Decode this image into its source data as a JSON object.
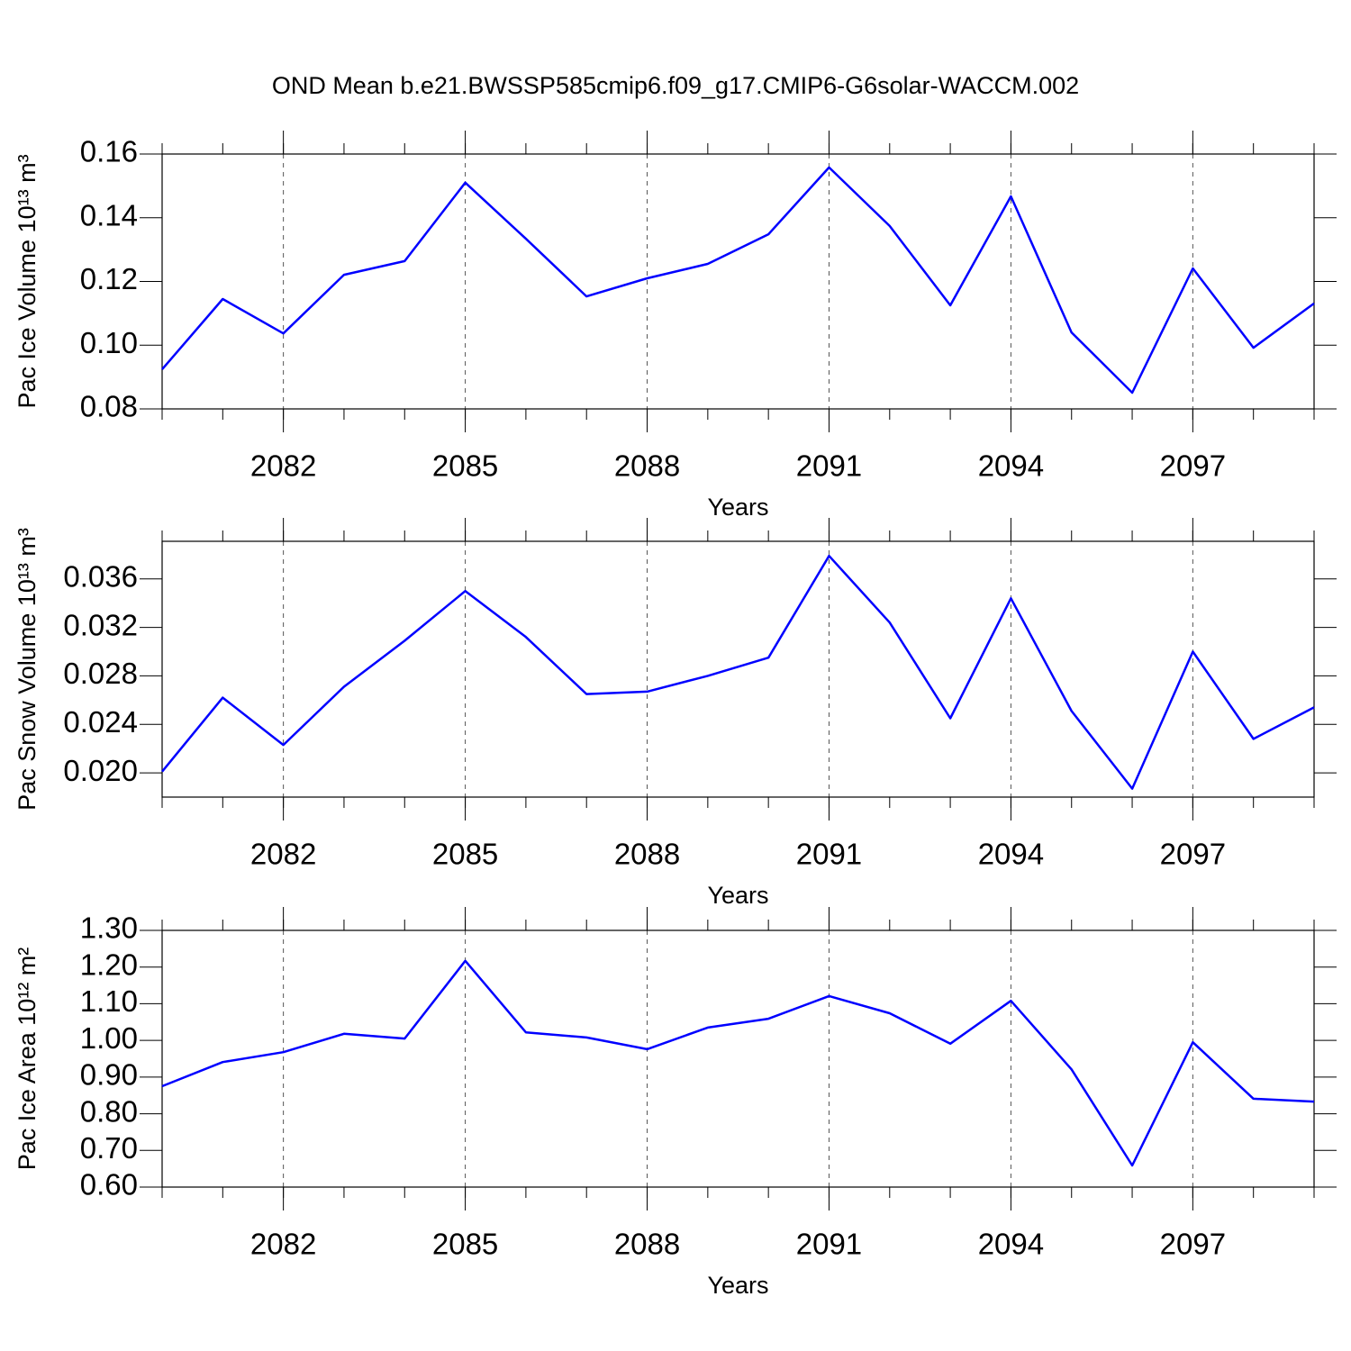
{
  "title": "OND Mean b.e21.BWSSP585cmip6.f09_g17.CMIP6-G6solar-WACCM.002",
  "chart_data": [
    {
      "type": "line",
      "xlabel": "Years",
      "ylabel": "Pac Ice Volume 10¹³ m³",
      "color": "#0000ff",
      "x": [
        2080,
        2081,
        2082,
        2083,
        2084,
        2085,
        2086,
        2087,
        2088,
        2089,
        2090,
        2091,
        2092,
        2093,
        2094,
        2095,
        2096,
        2097,
        2098,
        2099
      ],
      "values": [
        0.0924,
        0.1145,
        0.1037,
        0.1221,
        0.1264,
        0.151,
        0.1334,
        0.1153,
        0.121,
        0.1255,
        0.1348,
        0.1558,
        0.1374,
        0.1125,
        0.1467,
        0.104,
        0.0851,
        0.1241,
        0.0992,
        0.1131
      ],
      "xlim": [
        2080,
        2099
      ],
      "xticks": [
        2082,
        2085,
        2088,
        2091,
        2094,
        2097
      ],
      "ylim": [
        0.08,
        0.16
      ],
      "yticks": [
        0.08,
        {
          "value": 0.1,
          "label": "0.10"
        },
        0.12,
        0.14,
        0.16
      ],
      "xgrid": true
    },
    {
      "type": "line",
      "xlabel": "Years",
      "ylabel": "Pac Snow Volume 10¹³ m³",
      "color": "#0000ff",
      "x": [
        2080,
        2081,
        2082,
        2083,
        2084,
        2085,
        2086,
        2087,
        2088,
        2089,
        2090,
        2091,
        2092,
        2093,
        2094,
        2095,
        2096,
        2097,
        2098,
        2099
      ],
      "values": [
        0.0201,
        0.0262,
        0.0223,
        0.0271,
        0.0309,
        0.035,
        0.0312,
        0.0265,
        0.0267,
        0.028,
        0.0295,
        0.0379,
        0.0324,
        0.0245,
        0.0344,
        0.0251,
        0.0187,
        0.03,
        0.0228,
        0.0254
      ],
      "xlim": [
        2080,
        2099
      ],
      "xticks": [
        2082,
        2085,
        2088,
        2091,
        2094,
        2097
      ],
      "ylim": [
        0.018,
        0.0391
      ],
      "yticks": [
        {
          "value": 0.02,
          "label": "0.020"
        },
        0.024,
        0.028,
        0.032,
        0.036
      ],
      "xgrid": true
    },
    {
      "type": "line",
      "xlabel": "Years",
      "ylabel": "Pac Ice Area 10¹² m²",
      "color": "#0000ff",
      "x": [
        2080,
        2081,
        2082,
        2083,
        2084,
        2085,
        2086,
        2087,
        2088,
        2089,
        2090,
        2091,
        2092,
        2093,
        2094,
        2095,
        2096,
        2097,
        2098,
        2099
      ],
      "values": [
        0.875,
        0.941,
        0.968,
        1.018,
        1.005,
        1.217,
        1.022,
        1.008,
        0.976,
        1.035,
        1.059,
        1.121,
        1.074,
        0.991,
        1.108,
        0.921,
        0.659,
        0.995,
        0.841,
        0.833
      ],
      "xlim": [
        2080,
        2099
      ],
      "xticks": [
        2082,
        2085,
        2088,
        2091,
        2094,
        2097
      ],
      "ylim": [
        0.6,
        1.3
      ],
      "yticks": [
        {
          "value": 0.6,
          "label": "0.60"
        },
        {
          "value": 0.7,
          "label": "0.70"
        },
        {
          "value": 0.8,
          "label": "0.80"
        },
        {
          "value": 0.9,
          "label": "0.90"
        },
        {
          "value": 1.0,
          "label": "1.00"
        },
        {
          "value": 1.1,
          "label": "1.10"
        },
        {
          "value": 1.2,
          "label": "1.20"
        },
        {
          "value": 1.3,
          "label": "1.30"
        }
      ],
      "xgrid": true
    }
  ]
}
